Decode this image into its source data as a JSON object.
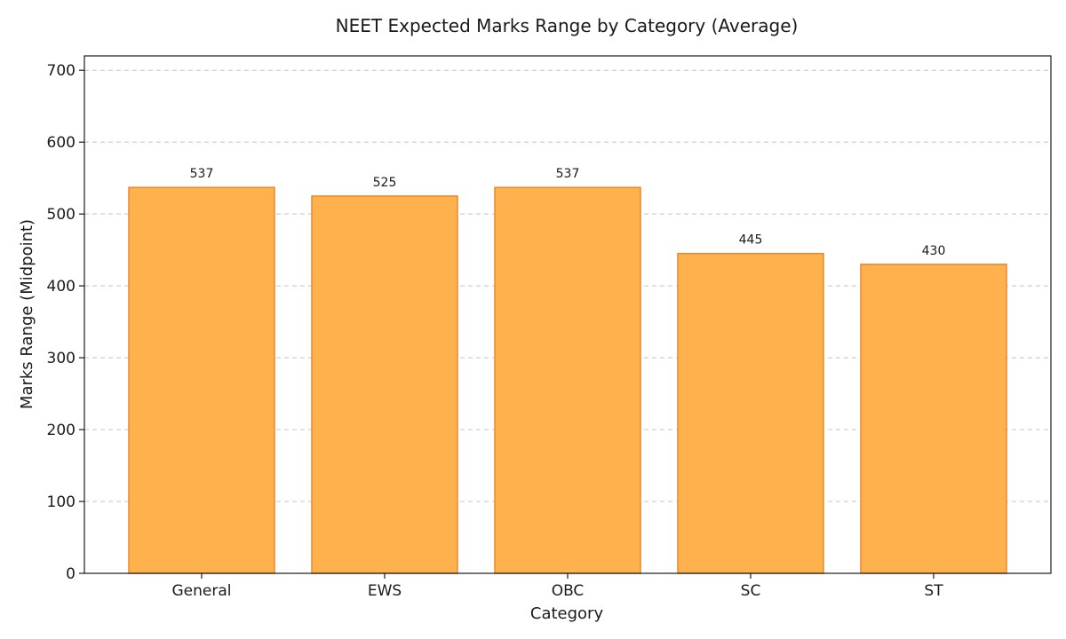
{
  "chart_data": {
    "type": "bar",
    "title": "NEET Expected Marks Range by Category (Average)",
    "xlabel": "Category",
    "ylabel": "Marks Range (Midpoint)",
    "categories": [
      "General",
      "EWS",
      "OBC",
      "SC",
      "ST"
    ],
    "values": [
      537,
      525,
      537,
      445,
      430
    ],
    "data_labels": [
      "537",
      "525",
      "537",
      "445",
      "430"
    ],
    "ylim": [
      0,
      720
    ],
    "yticks": [
      0,
      100,
      200,
      300,
      400,
      500,
      600,
      700
    ],
    "ytick_labels": [
      "0",
      "100",
      "200",
      "300",
      "400",
      "500",
      "600",
      "700"
    ],
    "grid": "y-dashed",
    "bar_color": "#ffb14e",
    "bar_edge_color": "#e8892f"
  }
}
